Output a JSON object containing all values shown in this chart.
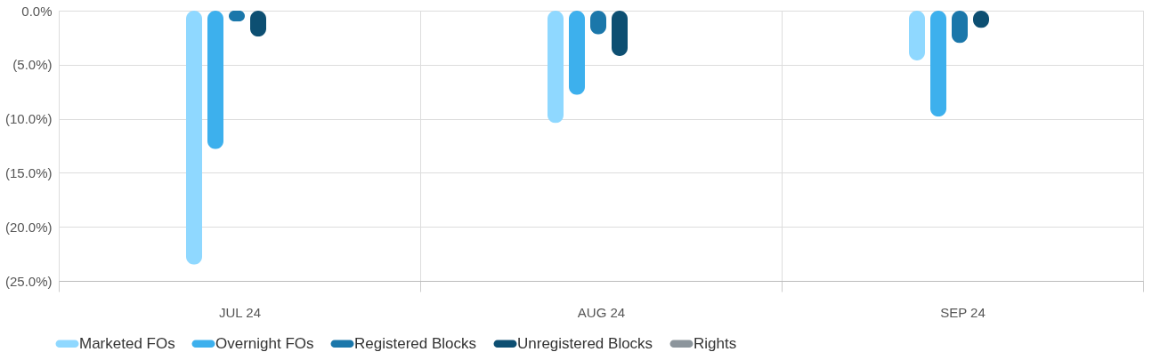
{
  "chart_data": {
    "type": "bar",
    "categories": [
      "JUL 24",
      "AUG 24",
      "SEP 24"
    ],
    "series": [
      {
        "name": "Marketed FOs",
        "color": "#8fd8ff",
        "values": [
          -23.5,
          -10.4,
          -4.6
        ]
      },
      {
        "name": "Overnight FOs",
        "color": "#3db0ed",
        "values": [
          -12.8,
          -7.8,
          -9.8
        ]
      },
      {
        "name": "Registered Blocks",
        "color": "#1b77aa",
        "values": [
          -1.0,
          -2.2,
          -3.0
        ]
      },
      {
        "name": "Unregistered Blocks",
        "color": "#0d4f72",
        "values": [
          -2.4,
          -4.2,
          -1.6
        ]
      },
      {
        "name": "Rights",
        "color": "#8c959c",
        "values": [
          null,
          null,
          null
        ]
      }
    ],
    "ylim": [
      -25,
      0
    ],
    "yticks": [
      {
        "value": 0,
        "label": "0.0%"
      },
      {
        "value": -5,
        "label": "(5.0%)"
      },
      {
        "value": -10,
        "label": "(10.0%)"
      },
      {
        "value": -15,
        "label": "(15.0%)"
      },
      {
        "value": -20,
        "label": "(20.0%)"
      },
      {
        "value": -25,
        "label": "(25.0%)"
      }
    ],
    "grid": true,
    "legend": "bottom"
  }
}
